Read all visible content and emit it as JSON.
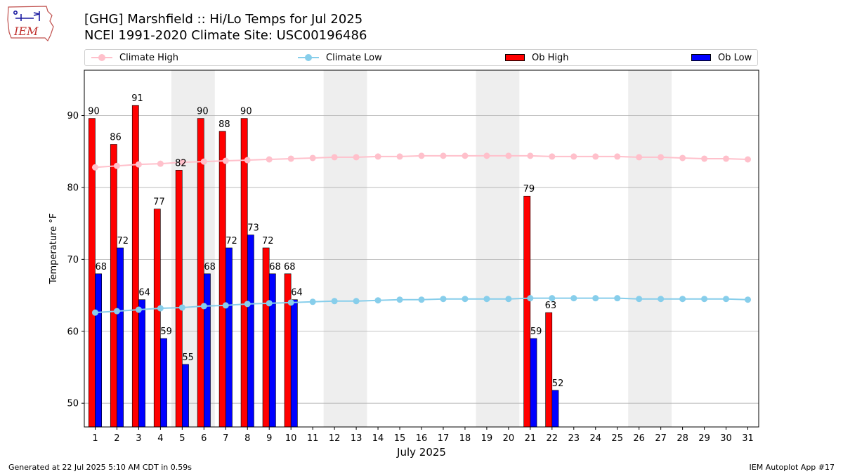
{
  "header": {
    "logo_text": "IEM",
    "title": "[GHG] Marshfield :: Hi/Lo Temps for Jul 2025",
    "subtitle": "NCEI 1991-2020 Climate Site: USC00196486"
  },
  "legend": {
    "climate_high": "Climate High",
    "climate_low": "Climate Low",
    "ob_high": "Ob High",
    "ob_low": "Ob Low",
    "placement": "top-spanning"
  },
  "footer": {
    "generated": "Generated at 22 Jul 2025 5:10 AM CDT in 0.59s",
    "app": "IEM Autoplot App #17"
  },
  "colors": {
    "ob_high": "#ff0000",
    "ob_low": "#0000ff",
    "climate_high": "#ffc0cb",
    "climate_low": "#87ceeb",
    "weekend_shade": "#eeeeee",
    "grid": "#b0b0b0"
  },
  "chart_data": {
    "type": "bar",
    "xlabel": "July 2025",
    "ylabel": "Temperature °F",
    "ylim": [
      46.7,
      96.3
    ],
    "yticks": [
      50,
      60,
      70,
      80,
      90
    ],
    "grid": "horizontal",
    "x": [
      1,
      2,
      3,
      4,
      5,
      6,
      7,
      8,
      9,
      10,
      11,
      12,
      13,
      14,
      15,
      16,
      17,
      18,
      19,
      20,
      21,
      22,
      23,
      24,
      25,
      26,
      27,
      28,
      29,
      30,
      31
    ],
    "weekend_spans": [
      [
        5,
        6
      ],
      [
        12,
        13
      ],
      [
        19,
        20
      ],
      [
        26,
        27
      ]
    ],
    "series": [
      {
        "name": "Ob High",
        "kind": "bar",
        "values": [
          90,
          86,
          91,
          77,
          82,
          90,
          88,
          90,
          72,
          68,
          null,
          null,
          null,
          null,
          null,
          null,
          null,
          null,
          null,
          null,
          79,
          63,
          null,
          null,
          null,
          null,
          null,
          null,
          null,
          null,
          null
        ],
        "plotted": [
          89.6,
          86.0,
          91.4,
          77.0,
          82.4,
          89.6,
          87.8,
          89.6,
          71.6,
          68.0,
          null,
          null,
          null,
          null,
          null,
          null,
          null,
          null,
          null,
          null,
          78.8,
          62.6,
          null,
          null,
          null,
          null,
          null,
          null,
          null,
          null,
          null
        ]
      },
      {
        "name": "Ob Low",
        "kind": "bar",
        "values": [
          68,
          72,
          64,
          59,
          55,
          68,
          72,
          73,
          68,
          64,
          null,
          null,
          null,
          null,
          null,
          null,
          null,
          null,
          null,
          null,
          59,
          52,
          null,
          null,
          null,
          null,
          null,
          null,
          null,
          null,
          null
        ],
        "plotted": [
          68.0,
          71.6,
          64.4,
          59.0,
          55.4,
          68.0,
          71.6,
          73.4,
          68.0,
          64.4,
          null,
          null,
          null,
          null,
          null,
          null,
          null,
          null,
          null,
          null,
          59.0,
          51.8,
          null,
          null,
          null,
          null,
          null,
          null,
          null,
          null,
          null
        ]
      },
      {
        "name": "Climate High",
        "kind": "line",
        "values": [
          82.8,
          83.0,
          83.2,
          83.3,
          83.5,
          83.6,
          83.7,
          83.8,
          83.9,
          84.0,
          84.1,
          84.2,
          84.2,
          84.3,
          84.3,
          84.4,
          84.4,
          84.4,
          84.4,
          84.4,
          84.4,
          84.3,
          84.3,
          84.3,
          84.3,
          84.2,
          84.2,
          84.1,
          84.0,
          84.0,
          83.9
        ]
      },
      {
        "name": "Climate Low",
        "kind": "line",
        "values": [
          62.6,
          62.8,
          63.0,
          63.2,
          63.3,
          63.5,
          63.6,
          63.8,
          63.9,
          64.0,
          64.1,
          64.2,
          64.2,
          64.3,
          64.4,
          64.4,
          64.5,
          64.5,
          64.5,
          64.5,
          64.6,
          64.6,
          64.6,
          64.6,
          64.6,
          64.5,
          64.5,
          64.5,
          64.5,
          64.5,
          64.4
        ]
      }
    ]
  }
}
